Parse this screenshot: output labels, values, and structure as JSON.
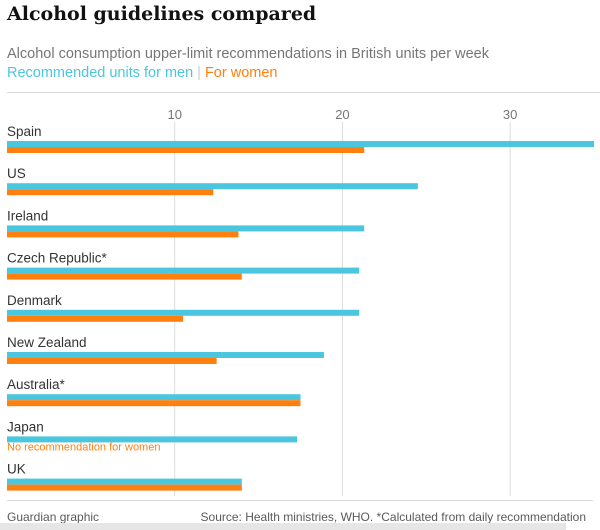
{
  "title": "Alcohol guidelines compared",
  "subtitle": "Alcohol consumption upper-limit recommendations in British units per week",
  "legend": {
    "men": "Recommended units for men",
    "separator": "|",
    "women": "For women"
  },
  "colors": {
    "men": "#4bc6df",
    "women": "#ff7f0f",
    "grid": "#dcdcdc",
    "tick": "#767676",
    "label": "#333333"
  },
  "chart_data": {
    "type": "bar",
    "orientation": "horizontal",
    "xlim": [
      0,
      35
    ],
    "ticks": [
      10,
      20,
      30
    ],
    "grid": true,
    "categories": [
      "Spain",
      "US",
      "Ireland",
      "Czech Republic*",
      "Denmark",
      "New Zealand",
      "Australia*",
      "Japan",
      "UK"
    ],
    "series": [
      {
        "name": "Recommended units for men",
        "values": [
          35,
          24.5,
          21.3,
          21,
          21,
          18.9,
          17.5,
          17.3,
          14
        ]
      },
      {
        "name": "For women",
        "values": [
          21.3,
          12.3,
          13.8,
          14,
          10.5,
          12.5,
          17.5,
          null,
          14
        ]
      }
    ],
    "notes": [
      {
        "category": "Japan",
        "text": "No recommendation for women"
      }
    ]
  },
  "footer": {
    "credit": "Guardian graphic",
    "source": "Source: Health ministries, WHO. *Calculated from daily recommendation"
  }
}
